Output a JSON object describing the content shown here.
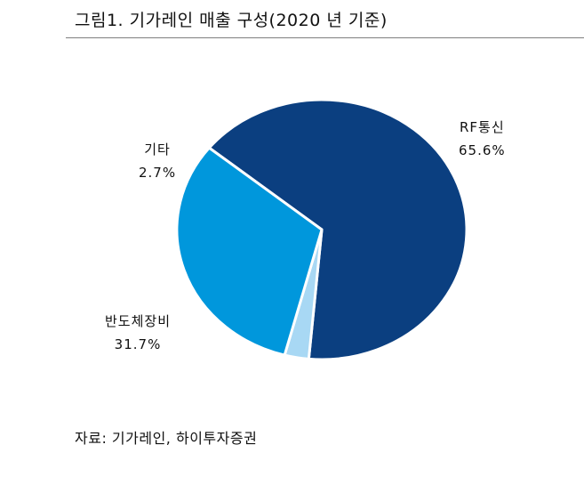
{
  "title": "그림1.  기가레인  매출  구성(2020 년  기준)",
  "source": "자료:  기가레인,  하이투자증권",
  "chart_data": {
    "type": "pie",
    "title": "그림1.  기가레인  매출  구성(2020 년  기준)",
    "slices": [
      {
        "label": "RF통신",
        "value": 65.6,
        "value_label": "65.6%",
        "color": "#0b3f80"
      },
      {
        "label": "반도체장비",
        "value": 31.7,
        "value_label": "31.7%",
        "color": "#0097dc"
      },
      {
        "label": "기타",
        "value": 2.7,
        "value_label": "2.7%",
        "color": "#a8d8f4"
      }
    ],
    "legend": "none"
  }
}
